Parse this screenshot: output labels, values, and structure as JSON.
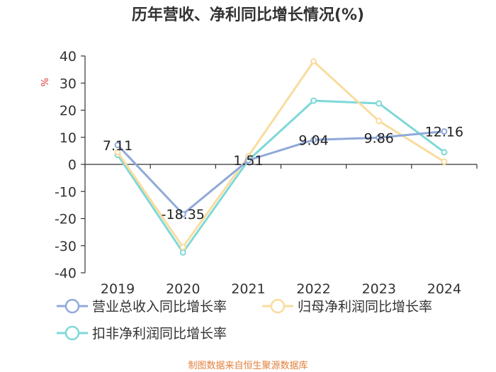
{
  "chart_data": {
    "type": "line",
    "title": "历年营收、净利同比增长情况(%)",
    "ylabel": "%",
    "xlabel": "",
    "categories": [
      "2019",
      "2020",
      "2021",
      "2022",
      "2023",
      "2024"
    ],
    "ylim": [
      -40,
      40
    ],
    "yticks": [
      40,
      30,
      20,
      10,
      0,
      -10,
      -20,
      -30,
      -40
    ],
    "series": [
      {
        "name": "营业总收入同比增长率",
        "values": [
          7.11,
          -18.35,
          1.51,
          9.04,
          9.86,
          12.16
        ],
        "labels": [
          "7.11",
          "-18.35",
          "1.51",
          "9.04",
          "9.86",
          "12.16"
        ],
        "color": "#8fa9d9"
      },
      {
        "name": "归母净利润同比增长率",
        "values": [
          4.5,
          -30.5,
          3.0,
          38.0,
          16.0,
          1.0
        ],
        "color": "#f9dc9e"
      },
      {
        "name": "扣非净利润同比增长率",
        "values": [
          3.5,
          -32.5,
          1.5,
          23.5,
          22.5,
          4.5
        ],
        "color": "#7fd8d8"
      }
    ]
  },
  "footer": {
    "source": "制图数据来自恒生聚源数据库"
  },
  "colors": {
    "axis": "#333333",
    "footer": "#e0803c",
    "ylabel": "#e03030"
  }
}
